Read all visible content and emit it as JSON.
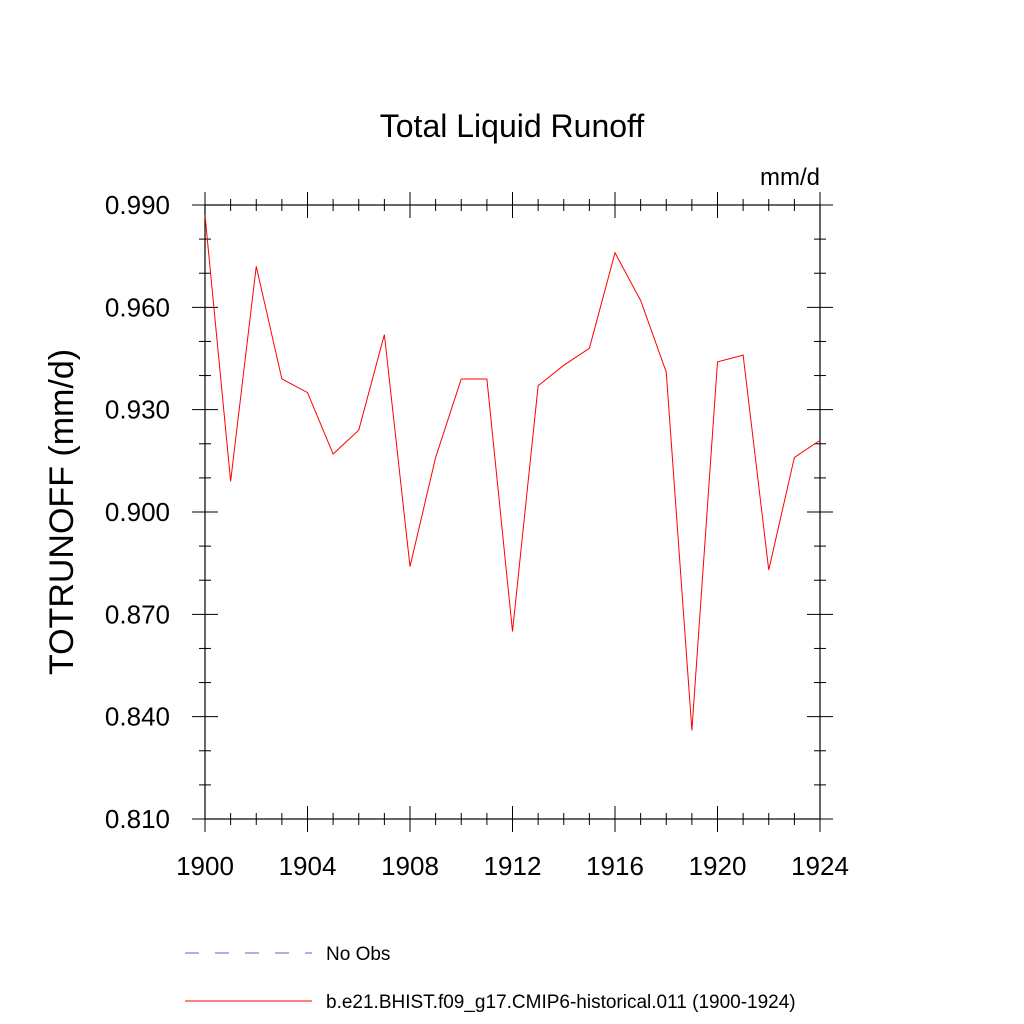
{
  "chart_data": {
    "type": "line",
    "title": "Total Liquid Runoff",
    "units_label": "mm/d",
    "ylabel": "TOTRUNOFF  (mm/d)",
    "xlabel": "",
    "xlim": [
      1900,
      1924
    ],
    "ylim": [
      0.81,
      0.99
    ],
    "x_ticks": [
      1900,
      1904,
      1908,
      1912,
      1916,
      1920,
      1924
    ],
    "x_tick_labels": [
      "1900",
      "1904",
      "1908",
      "1912",
      "1916",
      "1920",
      "1924"
    ],
    "y_ticks": [
      0.81,
      0.84,
      0.87,
      0.9,
      0.93,
      0.96,
      0.99
    ],
    "y_tick_labels": [
      "0.810",
      "0.840",
      "0.870",
      "0.900",
      "0.930",
      "0.960",
      "0.990"
    ],
    "grid": false,
    "legend_position": "bottom",
    "series": [
      {
        "name": "b.e21.BHIST.f09_g17.CMIP6-historical.011 (1900-1924)",
        "color": "#ff0000",
        "style": "solid",
        "x": [
          1900,
          1901,
          1902,
          1903,
          1904,
          1905,
          1906,
          1907,
          1908,
          1909,
          1910,
          1911,
          1912,
          1913,
          1914,
          1915,
          1916,
          1917,
          1918,
          1919,
          1920,
          1921,
          1922,
          1923,
          1924
        ],
        "y": [
          0.987,
          0.909,
          0.972,
          0.939,
          0.935,
          0.917,
          0.924,
          0.952,
          0.884,
          0.916,
          0.939,
          0.939,
          0.865,
          0.937,
          0.943,
          0.948,
          0.976,
          0.962,
          0.941,
          0.836,
          0.944,
          0.946,
          0.883,
          0.916,
          0.921
        ]
      }
    ],
    "legend": [
      {
        "name": "No Obs",
        "color": "#6a5acd",
        "style": "dashed"
      },
      {
        "name": "b.e21.BHIST.f09_g17.CMIP6-historical.011 (1900-1924)",
        "color": "#ff0000",
        "style": "solid"
      }
    ]
  }
}
